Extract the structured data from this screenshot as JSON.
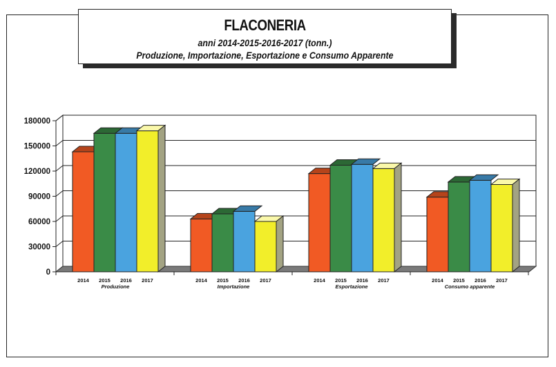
{
  "title": "FLACONERIA",
  "subtitle_line1": "anni 2014-2015-2016-2017 (tonn.)",
  "subtitle_line2": "Produzione, Importazione, Esportazione e Consumo Apparente",
  "chart_data": {
    "type": "bar",
    "categories": [
      "Produzione",
      "Importazione",
      "Esportazione",
      "Consumo apparente"
    ],
    "series": [
      {
        "name": "2014",
        "color": "#f15a24",
        "values": [
          143000,
          63000,
          117000,
          89000
        ]
      },
      {
        "name": "2015",
        "color": "#3a8b47",
        "values": [
          165000,
          69000,
          127000,
          107000
        ]
      },
      {
        "name": "2016",
        "color": "#4aa3df",
        "values": [
          165000,
          72000,
          128000,
          109000
        ]
      },
      {
        "name": "2017",
        "color": "#f2ee2a",
        "values": [
          168000,
          60000,
          123000,
          104000
        ]
      }
    ],
    "yticks": [
      "0",
      "30000",
      "60000",
      "90000",
      "120000",
      "150000",
      "180000"
    ],
    "ylim": [
      0,
      180000
    ],
    "grid": true,
    "legend": "none"
  }
}
